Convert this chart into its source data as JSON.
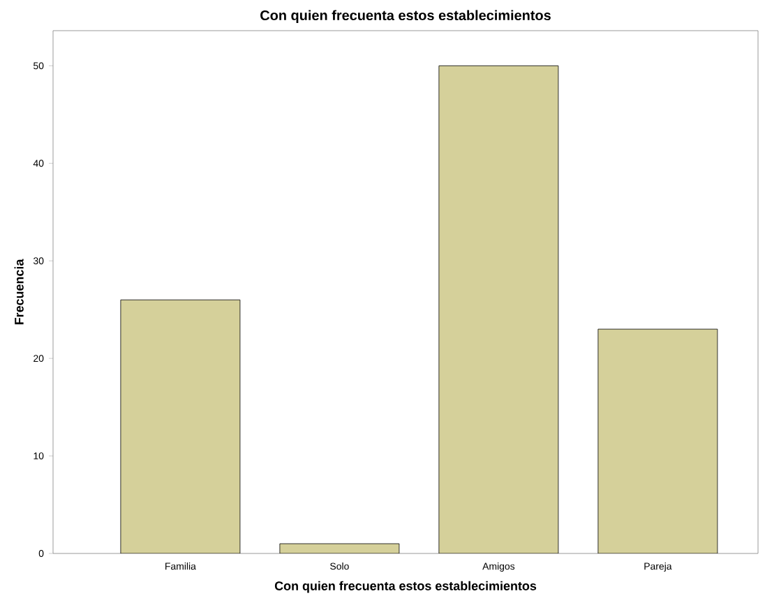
{
  "chart_data": {
    "type": "bar",
    "title": "Con quien frecuenta estos establecimientos",
    "xlabel": "Con quien frecuenta estos establecimientos",
    "ylabel": "Frecuencia",
    "categories": [
      "Familia",
      "Solo",
      "Amigos",
      "Pareja"
    ],
    "values": [
      26,
      1,
      50,
      23
    ],
    "color": "#d5d09a",
    "ylim": [
      0,
      53.6
    ],
    "yticks": [
      0,
      10,
      20,
      30,
      40,
      50
    ],
    "grid": false
  }
}
